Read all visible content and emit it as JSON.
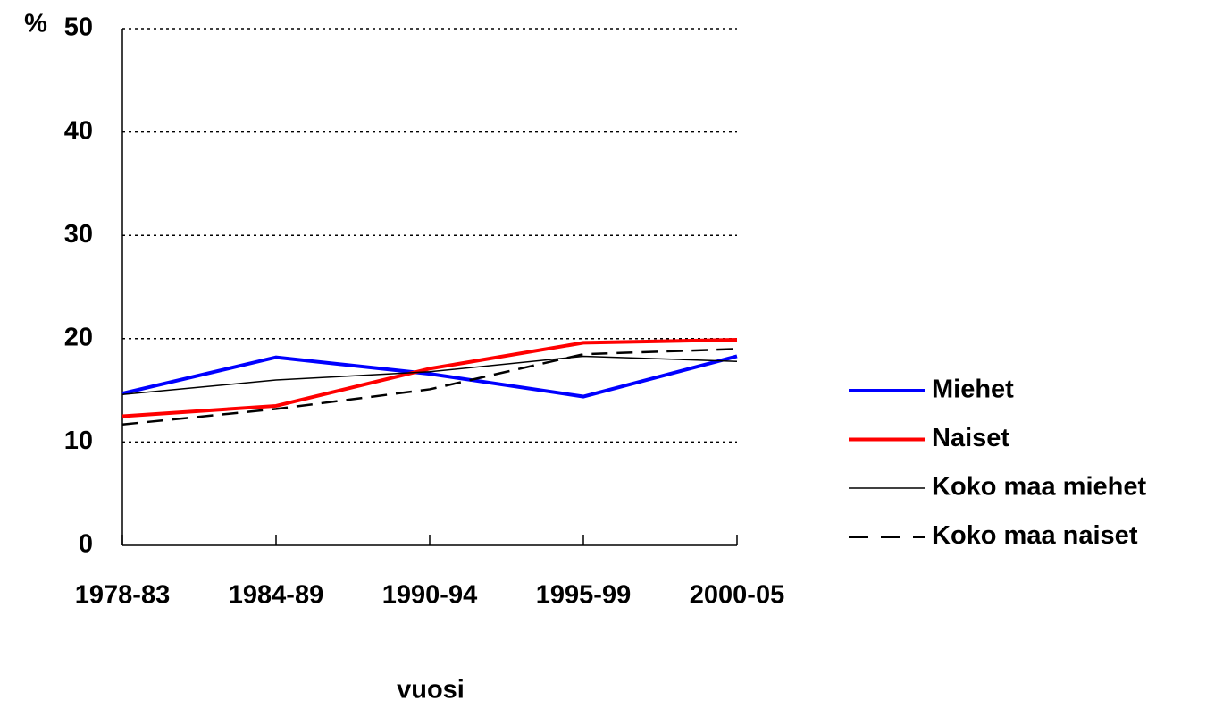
{
  "chart_data": {
    "type": "line",
    "y_label": "%",
    "x_label": "vuosi",
    "categories": [
      "1978-83",
      "1984-89",
      "1990-94",
      "1995-99",
      "2000-05"
    ],
    "series": [
      {
        "name": "Miehet",
        "color": "#0000ff",
        "width": 4,
        "dash": false,
        "values": [
          14.7,
          18.2,
          16.6,
          14.4,
          18.3
        ]
      },
      {
        "name": "Naiset",
        "color": "#ff0000",
        "width": 4,
        "dash": false,
        "values": [
          12.5,
          13.5,
          17.1,
          19.6,
          19.9
        ]
      },
      {
        "name": "Koko maa miehet",
        "color": "#000000",
        "width": 1.5,
        "dash": false,
        "values": [
          14.6,
          16.0,
          16.8,
          18.3,
          17.8
        ]
      },
      {
        "name": "Koko maa naiset",
        "color": "#000000",
        "width": 2.5,
        "dash": true,
        "values": [
          11.7,
          13.2,
          15.1,
          18.5,
          19.0
        ]
      }
    ],
    "ylim": [
      0,
      50
    ],
    "yticks": [
      0,
      10,
      20,
      30,
      40,
      50
    ],
    "grid": true,
    "legend": "right"
  }
}
